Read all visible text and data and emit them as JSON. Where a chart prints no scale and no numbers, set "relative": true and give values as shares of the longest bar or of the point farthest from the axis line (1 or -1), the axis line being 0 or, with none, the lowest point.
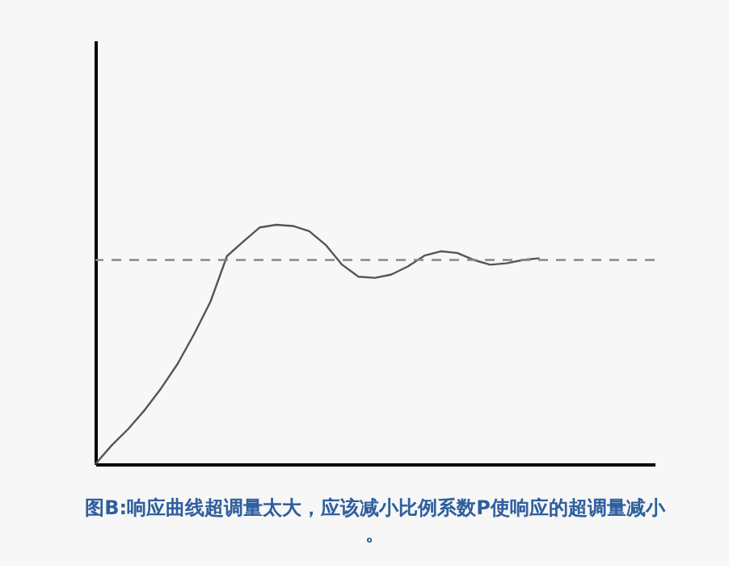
{
  "chart_data": {
    "type": "line",
    "title": "图B:响应曲线超调量太大，应该减小比例系数P使响应的超调量减小。",
    "relative": true,
    "grid": false,
    "marker": "none",
    "line_style": "solid",
    "categories": [
      null,
      null,
      null,
      null,
      null,
      null,
      null,
      null,
      null,
      null,
      null,
      null,
      null,
      null,
      null,
      null,
      null,
      null,
      null,
      null,
      null,
      null,
      null,
      null,
      null,
      null,
      null,
      null,
      null,
      null,
      null,
      null,
      null,
      null,
      null
    ],
    "series": [
      {
        "color": "#555555",
        "values": [
          0,
          0.079,
          0.147,
          0.226,
          0.317,
          0.419,
          0.543,
          0.679,
          0.869,
          0.93,
          0.989,
          1.0,
          0.995,
          0.973,
          0.916,
          0.833,
          0.783,
          0.778,
          0.792,
          0.826,
          0.871,
          0.889,
          0.882,
          0.853,
          0.833,
          0.839,
          0.853,
          0.86,
          null,
          null,
          null,
          null,
          null,
          null,
          null
        ]
      }
    ],
    "ref_lines": [
      {
        "axis": "y",
        "value": 0.853,
        "color": "#888888",
        "line_style": "dashed"
      }
    ]
  }
}
